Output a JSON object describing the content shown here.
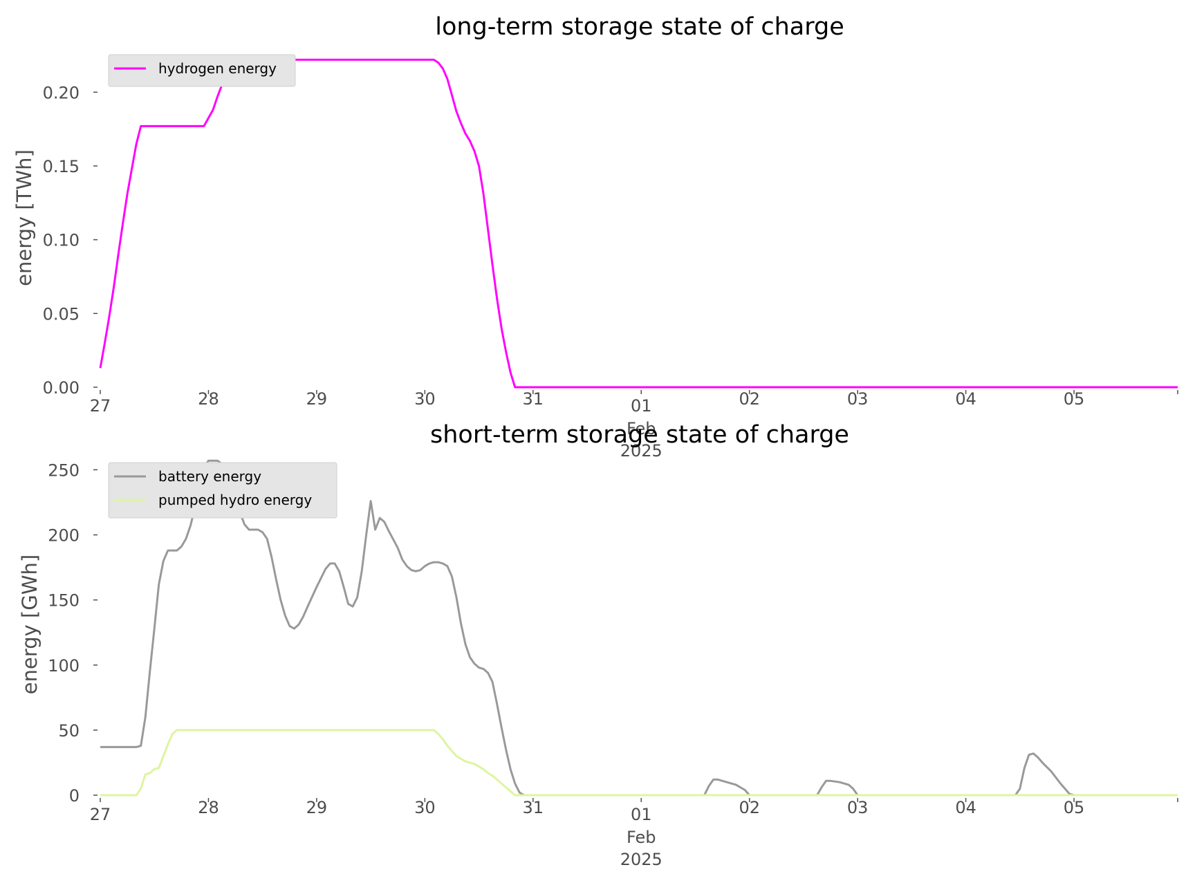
{
  "chart_data": [
    {
      "type": "line",
      "title": "long-term storage state of charge",
      "xlabel": "",
      "ylabel": "energy [TWh]",
      "xlim": [
        "2025-01-27 00:00",
        "2025-02-05 23:00"
      ],
      "ylim": [
        0,
        0.225
      ],
      "y_ticks": [
        "0.00",
        "0.05",
        "0.10",
        "0.15",
        "0.20"
      ],
      "x_ticks": [
        "27",
        "28",
        "29",
        "30",
        "31",
        "01",
        "02",
        "03",
        "04",
        "05"
      ],
      "x_tick_sublabels": {
        "month": "Feb",
        "year": "2025"
      },
      "grid": false,
      "legend": "upper-left",
      "series": [
        {
          "name": "hydrogen energy",
          "color": "#ff00ff",
          "points": [
            [
              "2025-01-27 00:00",
              0.013
            ],
            [
              "2025-01-27 01:00",
              0.03
            ],
            [
              "2025-01-27 02:00",
              0.048
            ],
            [
              "2025-01-27 03:00",
              0.068
            ],
            [
              "2025-01-27 04:00",
              0.09
            ],
            [
              "2025-01-27 05:00",
              0.111
            ],
            [
              "2025-01-27 06:00",
              0.131
            ],
            [
              "2025-01-27 07:00",
              0.148
            ],
            [
              "2025-01-27 08:00",
              0.165
            ],
            [
              "2025-01-27 09:00",
              0.177
            ],
            [
              "2025-01-27 10:00",
              0.177
            ],
            [
              "2025-01-27 23:00",
              0.177
            ],
            [
              "2025-01-28 01:00",
              0.188
            ],
            [
              "2025-01-28 02:00",
              0.197
            ],
            [
              "2025-01-28 03:00",
              0.205
            ],
            [
              "2025-01-28 04:00",
              0.214
            ],
            [
              "2025-01-28 05:00",
              0.222
            ],
            [
              "2025-01-30 02:00",
              0.222
            ],
            [
              "2025-01-30 03:00",
              0.22
            ],
            [
              "2025-01-30 04:00",
              0.216
            ],
            [
              "2025-01-30 05:00",
              0.209
            ],
            [
              "2025-01-30 06:00",
              0.198
            ],
            [
              "2025-01-30 07:00",
              0.187
            ],
            [
              "2025-01-30 08:00",
              0.179
            ],
            [
              "2025-01-30 09:00",
              0.172
            ],
            [
              "2025-01-30 10:00",
              0.167
            ],
            [
              "2025-01-30 11:00",
              0.16
            ],
            [
              "2025-01-30 12:00",
              0.15
            ],
            [
              "2025-01-30 13:00",
              0.131
            ],
            [
              "2025-01-30 14:00",
              0.107
            ],
            [
              "2025-01-30 15:00",
              0.083
            ],
            [
              "2025-01-30 16:00",
              0.06
            ],
            [
              "2025-01-30 17:00",
              0.04
            ],
            [
              "2025-01-30 18:00",
              0.024
            ],
            [
              "2025-01-30 19:00",
              0.01
            ],
            [
              "2025-01-30 20:00",
              0.0
            ],
            [
              "2025-02-05 23:00",
              0.0
            ]
          ]
        }
      ]
    },
    {
      "type": "line",
      "title": "short-term storage state of charge",
      "xlabel": "",
      "ylabel": "energy [GWh]",
      "xlim": [
        "2025-01-27 00:00",
        "2025-02-05 23:00"
      ],
      "ylim": [
        0,
        255
      ],
      "y_ticks": [
        "0",
        "50",
        "100",
        "150",
        "200",
        "250"
      ],
      "x_ticks": [
        "27",
        "28",
        "29",
        "30",
        "31",
        "01",
        "02",
        "03",
        "04",
        "05"
      ],
      "x_tick_sublabels": {
        "month": "Feb",
        "year": "2025"
      },
      "grid": false,
      "legend": "upper-left",
      "series": [
        {
          "name": "battery energy",
          "color": "#999999",
          "points": [
            [
              "2025-01-27 00:00",
              37
            ],
            [
              "2025-01-27 08:00",
              37
            ],
            [
              "2025-01-27 09:00",
              38
            ],
            [
              "2025-01-27 10:00",
              60
            ],
            [
              "2025-01-27 11:00",
              95
            ],
            [
              "2025-01-27 12:00",
              128
            ],
            [
              "2025-01-27 13:00",
              162
            ],
            [
              "2025-01-27 14:00",
              180
            ],
            [
              "2025-01-27 15:00",
              188
            ],
            [
              "2025-01-27 17:00",
              188
            ],
            [
              "2025-01-27 18:00",
              191
            ],
            [
              "2025-01-27 19:00",
              197
            ],
            [
              "2025-01-27 20:00",
              207
            ],
            [
              "2025-01-27 21:00",
              221
            ],
            [
              "2025-01-27 22:00",
              239
            ],
            [
              "2025-01-27 23:00",
              252
            ],
            [
              "2025-01-28 00:00",
              257
            ],
            [
              "2025-01-28 02:00",
              257
            ],
            [
              "2025-01-28 04:00",
              252
            ],
            [
              "2025-01-28 05:00",
              242
            ],
            [
              "2025-01-28 06:00",
              229
            ],
            [
              "2025-01-28 07:00",
              217
            ],
            [
              "2025-01-28 08:00",
              208
            ],
            [
              "2025-01-28 09:00",
              204
            ],
            [
              "2025-01-28 10:00",
              204
            ],
            [
              "2025-01-28 11:00",
              204
            ],
            [
              "2025-01-28 12:00",
              202
            ],
            [
              "2025-01-28 13:00",
              197
            ],
            [
              "2025-01-28 14:00",
              183
            ],
            [
              "2025-01-28 15:00",
              166
            ],
            [
              "2025-01-28 16:00",
              150
            ],
            [
              "2025-01-28 17:00",
              138
            ],
            [
              "2025-01-28 18:00",
              130
            ],
            [
              "2025-01-28 19:00",
              128
            ],
            [
              "2025-01-28 20:00",
              131
            ],
            [
              "2025-01-28 21:00",
              137
            ],
            [
              "2025-01-28 22:00",
              145
            ],
            [
              "2025-01-29 00:00",
              160
            ],
            [
              "2025-01-29 02:00",
              174
            ],
            [
              "2025-01-29 03:00",
              178
            ],
            [
              "2025-01-29 04:00",
              178
            ],
            [
              "2025-01-29 05:00",
              172
            ],
            [
              "2025-01-29 06:00",
              160
            ],
            [
              "2025-01-29 07:00",
              147
            ],
            [
              "2025-01-29 08:00",
              145
            ],
            [
              "2025-01-29 09:00",
              152
            ],
            [
              "2025-01-29 10:00",
              172
            ],
            [
              "2025-01-29 11:00",
              200
            ],
            [
              "2025-01-29 12:00",
              226
            ],
            [
              "2025-01-29 13:00",
              204
            ],
            [
              "2025-01-29 14:00",
              213
            ],
            [
              "2025-01-29 15:00",
              210
            ],
            [
              "2025-01-29 16:00",
              203
            ],
            [
              "2025-01-29 18:00",
              190
            ],
            [
              "2025-01-29 19:00",
              181
            ],
            [
              "2025-01-29 20:00",
              176
            ],
            [
              "2025-01-29 21:00",
              173
            ],
            [
              "2025-01-29 22:00",
              172
            ],
            [
              "2025-01-29 23:00",
              173
            ],
            [
              "2025-01-30 00:00",
              176
            ],
            [
              "2025-01-30 01:00",
              178
            ],
            [
              "2025-01-30 02:00",
              179
            ],
            [
              "2025-01-30 03:00",
              179
            ],
            [
              "2025-01-30 04:00",
              178
            ],
            [
              "2025-01-30 05:00",
              176
            ],
            [
              "2025-01-30 06:00",
              168
            ],
            [
              "2025-01-30 07:00",
              152
            ],
            [
              "2025-01-30 08:00",
              132
            ],
            [
              "2025-01-30 09:00",
              116
            ],
            [
              "2025-01-30 10:00",
              106
            ],
            [
              "2025-01-30 11:00",
              101
            ],
            [
              "2025-01-30 12:00",
              98
            ],
            [
              "2025-01-30 13:00",
              97
            ],
            [
              "2025-01-30 14:00",
              94
            ],
            [
              "2025-01-30 15:00",
              87
            ],
            [
              "2025-01-30 16:00",
              70
            ],
            [
              "2025-01-30 17:00",
              52
            ],
            [
              "2025-01-30 18:00",
              35
            ],
            [
              "2025-01-30 19:00",
              20
            ],
            [
              "2025-01-30 20:00",
              9
            ],
            [
              "2025-01-30 21:00",
              2
            ],
            [
              "2025-01-30 22:00",
              0
            ],
            [
              "2025-02-01 14:00",
              0
            ],
            [
              "2025-02-01 15:00",
              7
            ],
            [
              "2025-02-01 16:00",
              12
            ],
            [
              "2025-02-01 17:00",
              12
            ],
            [
              "2025-02-01 19:00",
              10
            ],
            [
              "2025-02-01 21:00",
              8
            ],
            [
              "2025-02-01 23:00",
              4
            ],
            [
              "2025-02-02 00:00",
              0
            ],
            [
              "2025-02-02 15:00",
              0
            ],
            [
              "2025-02-02 16:00",
              6
            ],
            [
              "2025-02-02 17:00",
              11
            ],
            [
              "2025-02-02 18:00",
              11
            ],
            [
              "2025-02-02 20:00",
              10
            ],
            [
              "2025-02-02 22:00",
              8
            ],
            [
              "2025-02-02 23:00",
              5
            ],
            [
              "2025-02-03 00:00",
              0
            ],
            [
              "2025-02-04 11:00",
              0
            ],
            [
              "2025-02-04 12:00",
              5
            ],
            [
              "2025-02-04 13:00",
              21
            ],
            [
              "2025-02-04 14:00",
              31
            ],
            [
              "2025-02-04 15:00",
              32
            ],
            [
              "2025-02-04 16:00",
              29
            ],
            [
              "2025-02-04 17:00",
              25
            ],
            [
              "2025-02-04 19:00",
              18
            ],
            [
              "2025-02-04 21:00",
              9
            ],
            [
              "2025-02-04 23:00",
              1
            ],
            [
              "2025-02-05 00:00",
              0
            ],
            [
              "2025-02-05 23:00",
              0
            ]
          ]
        },
        {
          "name": "pumped hydro energy",
          "color": "#ddf5a0",
          "points": [
            [
              "2025-01-27 00:00",
              0
            ],
            [
              "2025-01-27 08:00",
              0
            ],
            [
              "2025-01-27 09:00",
              5
            ],
            [
              "2025-01-27 10:00",
              16
            ],
            [
              "2025-01-27 11:00",
              17
            ],
            [
              "2025-01-27 12:00",
              20
            ],
            [
              "2025-01-27 13:00",
              21
            ],
            [
              "2025-01-27 14:00",
              30
            ],
            [
              "2025-01-27 15:00",
              39
            ],
            [
              "2025-01-27 16:00",
              47
            ],
            [
              "2025-01-27 17:00",
              50
            ],
            [
              "2025-01-30 02:00",
              50
            ],
            [
              "2025-01-30 03:00",
              47
            ],
            [
              "2025-01-30 04:00",
              43
            ],
            [
              "2025-01-30 05:00",
              38
            ],
            [
              "2025-01-30 06:00",
              34
            ],
            [
              "2025-01-30 07:00",
              30
            ],
            [
              "2025-01-30 08:00",
              28
            ],
            [
              "2025-01-30 09:00",
              26
            ],
            [
              "2025-01-30 10:00",
              25
            ],
            [
              "2025-01-30 11:00",
              24
            ],
            [
              "2025-01-30 12:00",
              22
            ],
            [
              "2025-01-30 13:00",
              20
            ],
            [
              "2025-01-30 14:00",
              17
            ],
            [
              "2025-01-30 15:00",
              15
            ],
            [
              "2025-01-30 16:00",
              12
            ],
            [
              "2025-01-30 17:00",
              9
            ],
            [
              "2025-01-30 18:00",
              6
            ],
            [
              "2025-01-30 19:00",
              3
            ],
            [
              "2025-01-30 20:00",
              0
            ],
            [
              "2025-02-05 23:00",
              0
            ]
          ]
        }
      ]
    }
  ]
}
